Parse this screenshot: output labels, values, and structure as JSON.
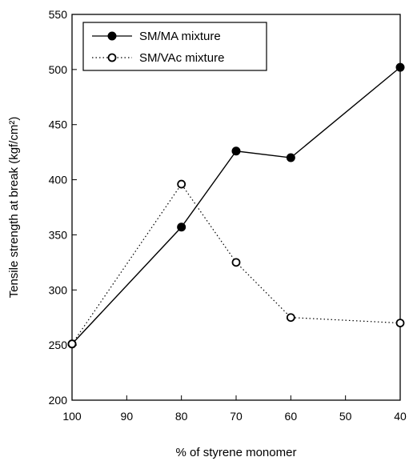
{
  "chart_data": {
    "type": "line",
    "xlabel": "% of styrene monomer",
    "ylabel": "Tensile strength at break (kgf/cm²)",
    "x": [
      100,
      80,
      70,
      60,
      40
    ],
    "xlim": [
      100,
      40
    ],
    "ylim": [
      200,
      550
    ],
    "x_ticks": [
      100,
      90,
      80,
      70,
      60,
      50,
      40
    ],
    "y_ticks": [
      200,
      250,
      300,
      350,
      400,
      450,
      500,
      550
    ],
    "grid": false,
    "legend_position": "top-left",
    "series": [
      {
        "name": "SM/MA mixture",
        "values": [
          251,
          357,
          426,
          420,
          502
        ],
        "marker": "filled-circle",
        "line": "solid",
        "color": "#000000"
      },
      {
        "name": "SM/VAc mixture",
        "values": [
          251,
          396,
          325,
          275,
          270
        ],
        "marker": "open-circle",
        "line": "dotted",
        "color": "#000000"
      }
    ]
  }
}
